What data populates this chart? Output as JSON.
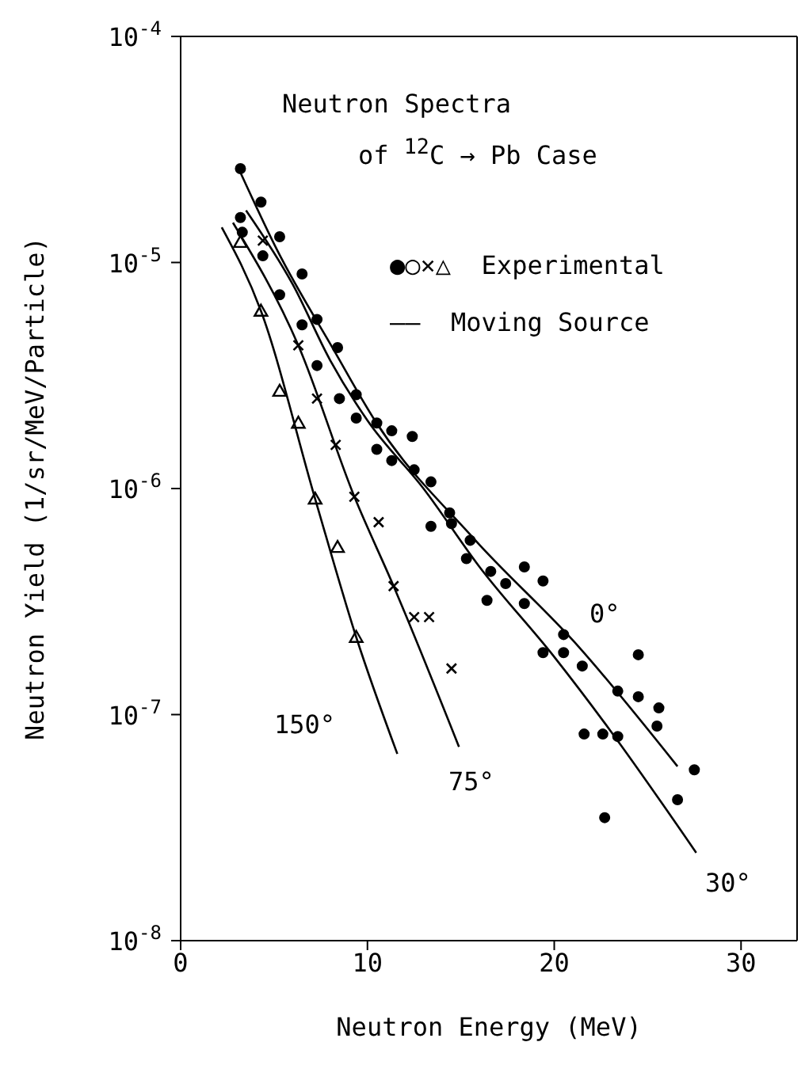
{
  "chart_data": {
    "type": "scatter",
    "title": "Neutron Spectra",
    "subtitle": "of $^{12}$C → Pb Case",
    "xlabel": "Neutron Energy (MeV)",
    "ylabel": "Neutron Yield   (1/sr/MeV/Particle)",
    "log": "y",
    "xlim": [
      0,
      33
    ],
    "xticks": [
      0,
      10,
      20,
      30
    ],
    "ylim": [
      1e-08,
      0.0001
    ],
    "yticks": [
      {
        "value": 1e-08,
        "label": "10$^{-8}$"
      },
      {
        "value": 1e-07,
        "label": "10$^{-7}$"
      },
      {
        "value": 1e-06,
        "label": "10$^{-6}$"
      },
      {
        "value": 1e-05,
        "label": "10$^{-5}$"
      },
      {
        "value": 0.0001,
        "label": "10$^{-4}$"
      }
    ],
    "annotations": [
      "●○×△  Experimental",
      "——  Moving Source",
      "0°",
      "30°",
      "75°",
      "150°"
    ],
    "series": [
      {
        "marker": "circle",
        "color": "#000000",
        "x": [
          3.2,
          3.2,
          4.3,
          5.3,
          6.5,
          7.3,
          8.4,
          9.4,
          10.5,
          11.3,
          12.4,
          13.4,
          14.4,
          15.5,
          16.6,
          17.4,
          18.4,
          19.4,
          20.5,
          21.6,
          22.7,
          23.4,
          24.5,
          25.6,
          27.5
        ],
        "values": [
          2.6e-05,
          1.58e-05,
          1.85e-05,
          1.3e-05,
          8.9e-06,
          5.6e-06,
          4.2e-06,
          2.6e-06,
          1.95e-06,
          1.8e-06,
          1.7e-06,
          1.07e-06,
          7.8e-07,
          5.9e-07,
          4.3e-07,
          3.8e-07,
          4.5e-07,
          3.9e-07,
          2.26e-07,
          8.2e-08,
          3.5e-08,
          1.27e-07,
          1.84e-07,
          1.07e-07,
          5.7e-08
        ]
      },
      {
        "marker": "circle",
        "color": "#000000",
        "x": [
          3.3,
          4.4,
          5.3,
          6.5,
          7.3,
          8.5,
          9.4,
          10.5,
          11.3,
          12.5,
          13.4,
          14.5,
          15.3,
          16.4,
          18.4,
          19.4,
          20.5,
          21.5,
          22.6,
          23.4,
          24.5,
          25.5,
          26.6
        ],
        "values": [
          1.36e-05,
          1.07e-05,
          7.2e-06,
          5.3e-06,
          3.5e-06,
          2.5e-06,
          2.05e-06,
          1.49e-06,
          1.33e-06,
          1.21e-06,
          6.8e-07,
          7e-07,
          4.9e-07,
          3.2e-07,
          3.1e-07,
          1.88e-07,
          1.88e-07,
          1.64e-07,
          8.2e-08,
          8e-08,
          1.2e-07,
          8.9e-08,
          4.2e-08
        ]
      },
      {
        "marker": "cross",
        "color": "#000000",
        "x": [
          4.4,
          6.3,
          7.3,
          8.3,
          9.3,
          10.6,
          11.4,
          12.5,
          13.3,
          14.5
        ],
        "values": [
          1.25e-05,
          4.3e-06,
          2.5e-06,
          1.56e-06,
          9.2e-07,
          7.1e-07,
          3.7e-07,
          2.7e-07,
          2.7e-07,
          1.6e-07
        ]
      },
      {
        "marker": "triangle",
        "color": "#000000",
        "x": [
          3.2,
          4.3,
          5.3,
          6.3,
          7.2,
          8.4,
          9.4
        ],
        "values": [
          1.23e-05,
          6.1e-06,
          2.7e-06,
          1.95e-06,
          9e-07,
          5.5e-07,
          2.2e-07
        ]
      },
      {
        "type": "line",
        "marker": "none",
        "color": "#000000",
        "x": [
          3.2,
          5.2,
          8.2,
          10.4,
          15.7,
          21.3,
          26.6
        ],
        "values": [
          2.5e-05,
          1.12e-05,
          4.1e-06,
          2e-06,
          6e-07,
          2e-07,
          5.9e-08
        ]
      },
      {
        "type": "line",
        "marker": "none",
        "color": "#000000",
        "x": [
          3.5,
          6,
          8,
          10,
          13,
          16,
          20,
          23,
          27.6
        ],
        "values": [
          1.7e-05,
          8e-06,
          3.7e-06,
          2e-06,
          1e-06,
          4.5e-07,
          1.8e-07,
          8.5e-08,
          2.45e-08
        ]
      },
      {
        "type": "line",
        "marker": "none",
        "color": "#000000",
        "x": [
          2.8,
          6.3,
          9.3,
          11.4,
          14.9
        ],
        "values": [
          1.5e-05,
          4.3e-06,
          9.2e-07,
          3.7e-07,
          7.2e-08
        ]
      },
      {
        "type": "line",
        "marker": "none",
        "color": "#000000",
        "x": [
          2.2,
          4.3,
          7.2,
          9.4,
          11.6
        ],
        "values": [
          1.43e-05,
          6.1e-06,
          9e-07,
          2.2e-07,
          6.7e-08
        ]
      }
    ]
  }
}
